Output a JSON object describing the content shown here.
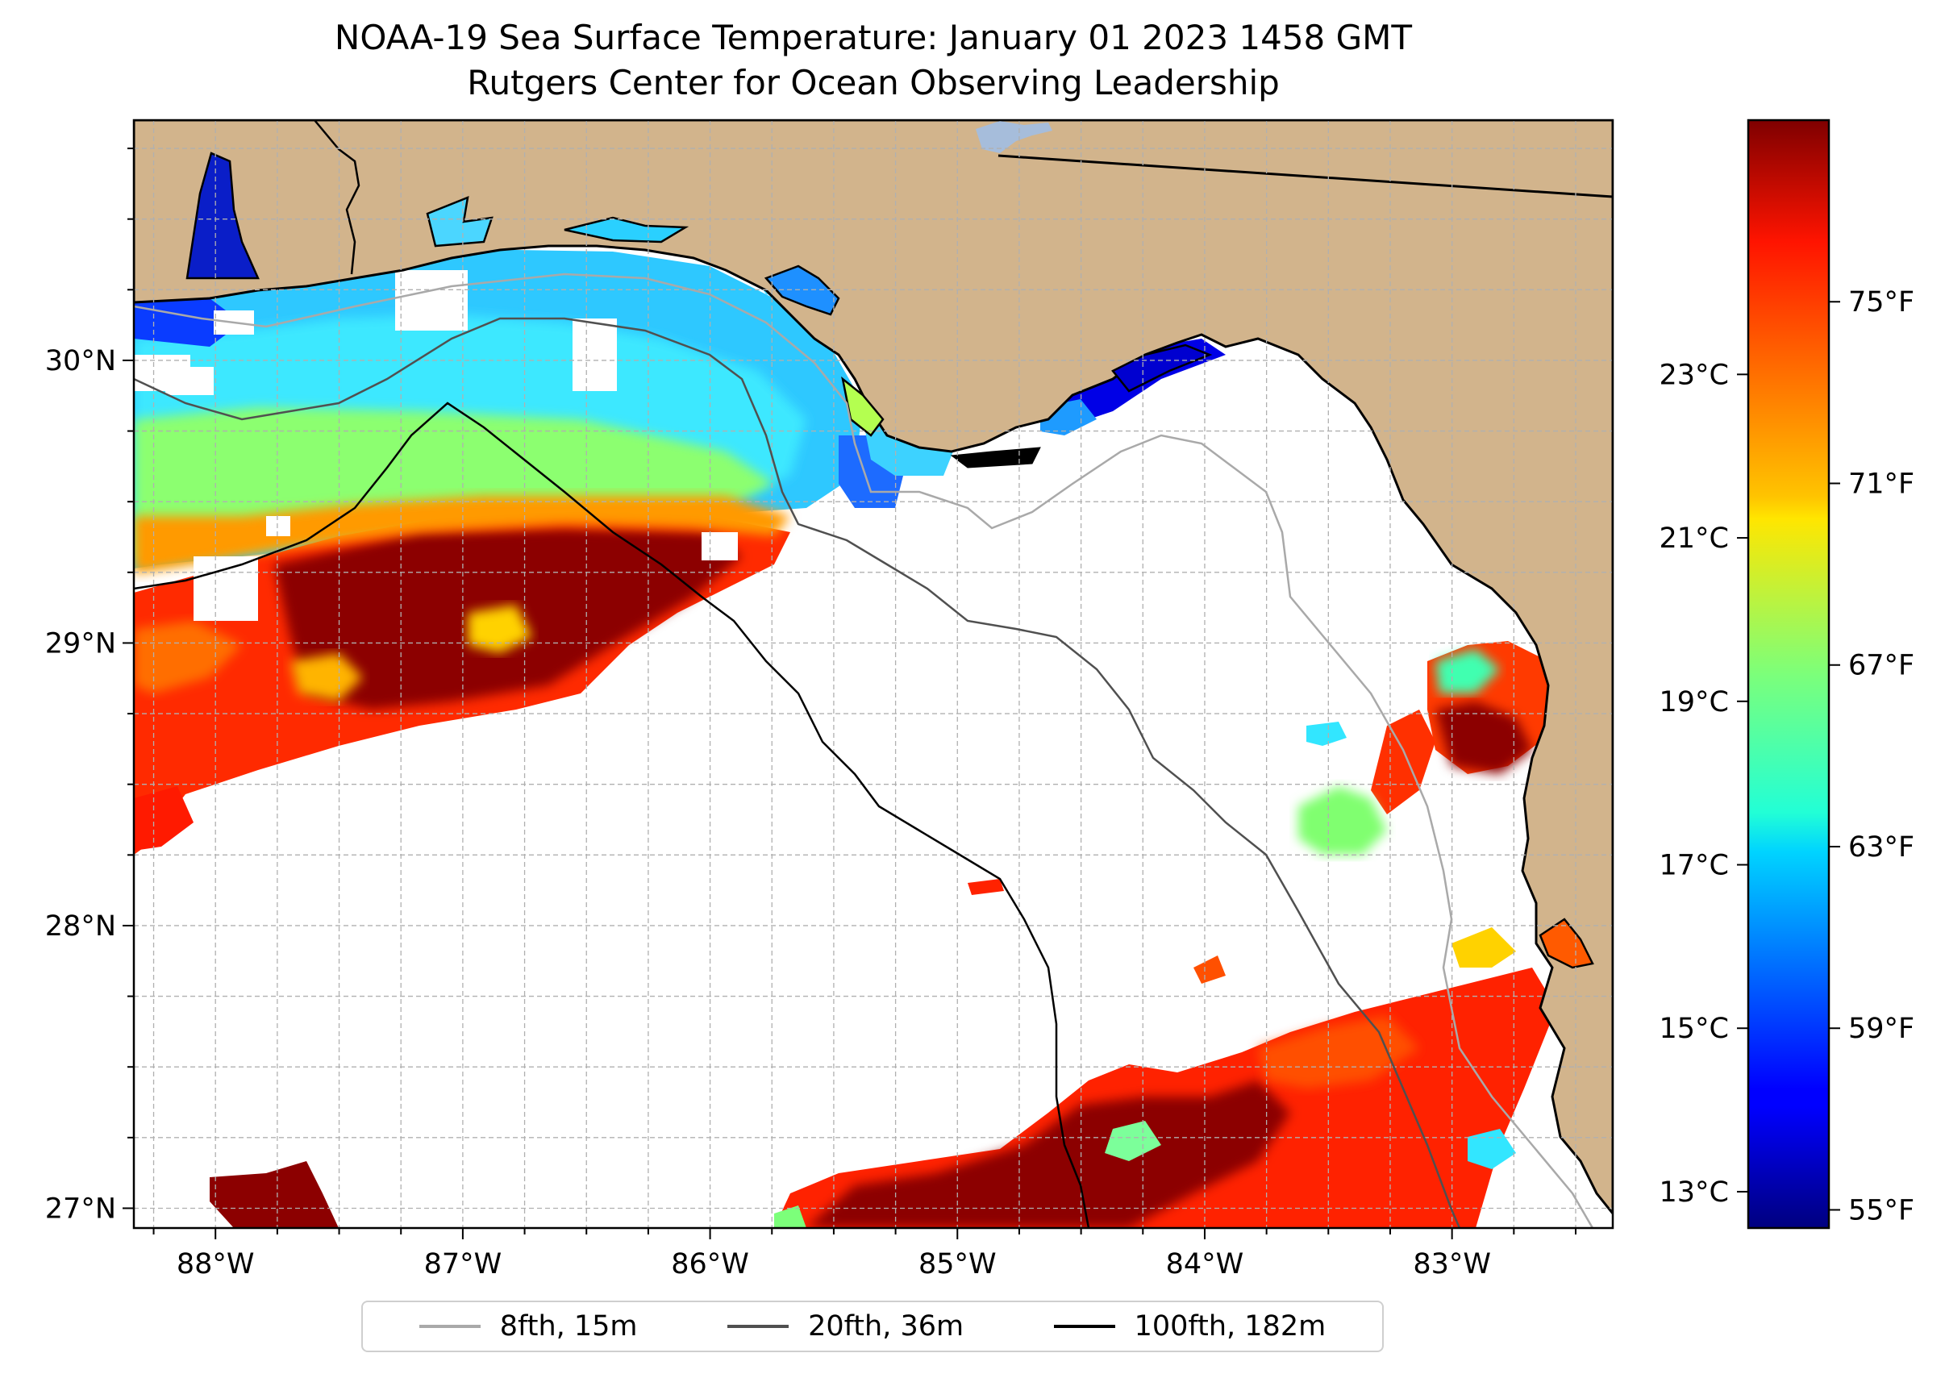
{
  "title": {
    "line1": "NOAA-19 Sea Surface Temperature: January 01 2023 1458 GMT",
    "line2": "Rutgers Center for Ocean Observing Leadership"
  },
  "map": {
    "lon_range": [
      -88.33,
      -82.35
    ],
    "lat_range": [
      26.93,
      30.85
    ],
    "lon_ticks": [
      {
        "value": -88,
        "label": "88°W"
      },
      {
        "value": -87,
        "label": "87°W"
      },
      {
        "value": -86,
        "label": "86°W"
      },
      {
        "value": -85,
        "label": "85°W"
      },
      {
        "value": -84,
        "label": "84°W"
      },
      {
        "value": -83,
        "label": "83°W"
      }
    ],
    "lat_ticks": [
      {
        "value": 27,
        "label": "27°N"
      },
      {
        "value": 28,
        "label": "28°N"
      },
      {
        "value": 29,
        "label": "29°N"
      },
      {
        "value": 30,
        "label": "30°N"
      }
    ],
    "gridline_spacing_deg": 0.25,
    "colors": {
      "land": "#d2b48c",
      "ocean_nodata": "#ffffff",
      "lake": "#a6bddb",
      "coast": "#000000"
    }
  },
  "colorbar": {
    "colormap": "jet",
    "range_f": [
      54.6,
      79.0
    ],
    "celsius_ticks": [
      {
        "value": 13,
        "label": "13°C"
      },
      {
        "value": 15,
        "label": "15°C"
      },
      {
        "value": 17,
        "label": "17°C"
      },
      {
        "value": 19,
        "label": "19°C"
      },
      {
        "value": 21,
        "label": "21°C"
      },
      {
        "value": 23,
        "label": "23°C"
      }
    ],
    "fahrenheit_ticks": [
      {
        "value": 55,
        "label": "55°F"
      },
      {
        "value": 59,
        "label": "59°F"
      },
      {
        "value": 63,
        "label": "63°F"
      },
      {
        "value": 67,
        "label": "67°F"
      },
      {
        "value": 71,
        "label": "71°F"
      },
      {
        "value": 75,
        "label": "75°F"
      }
    ]
  },
  "legend": [
    {
      "label": "8fth, 15m",
      "color": "#a9a9a9"
    },
    {
      "label": "20fth, 36m",
      "color": "#505050"
    },
    {
      "label": "100fth, 182m",
      "color": "#000000"
    }
  ]
}
